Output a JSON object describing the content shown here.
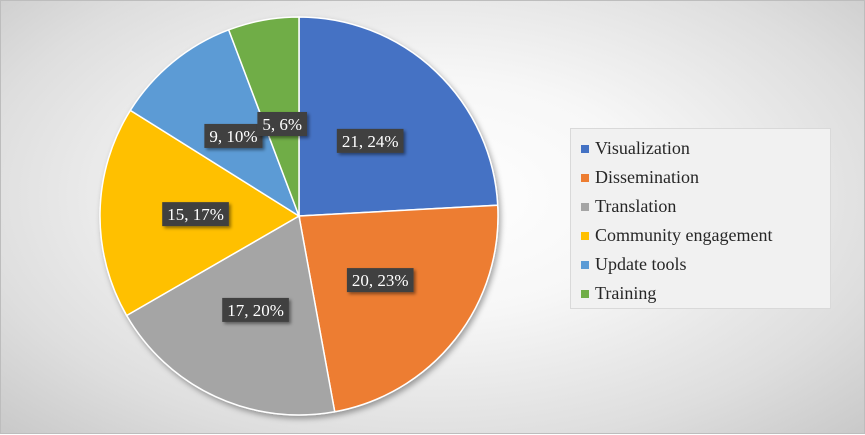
{
  "chart_data": {
    "type": "pie",
    "title": "",
    "legend_position": "right",
    "slices": [
      {
        "name": "Visualization",
        "value": 21,
        "percent": 24,
        "label": "21, 24%",
        "color": "#4472C4"
      },
      {
        "name": "Dissemination",
        "value": 20,
        "percent": 23,
        "label": "20, 23%",
        "color": "#ED7D31"
      },
      {
        "name": "Translation",
        "value": 17,
        "percent": 20,
        "label": "17, 20%",
        "color": "#A5A5A5"
      },
      {
        "name": "Community engagement",
        "value": 15,
        "percent": 17,
        "label": "15, 17%",
        "color": "#FFC000"
      },
      {
        "name": "Update tools",
        "value": 9,
        "percent": 10,
        "label": "9, 10%",
        "color": "#5B9BD5"
      },
      {
        "name": "Training",
        "value": 5,
        "percent": 6,
        "label": "5, 6%",
        "color": "#70AD47"
      }
    ]
  }
}
